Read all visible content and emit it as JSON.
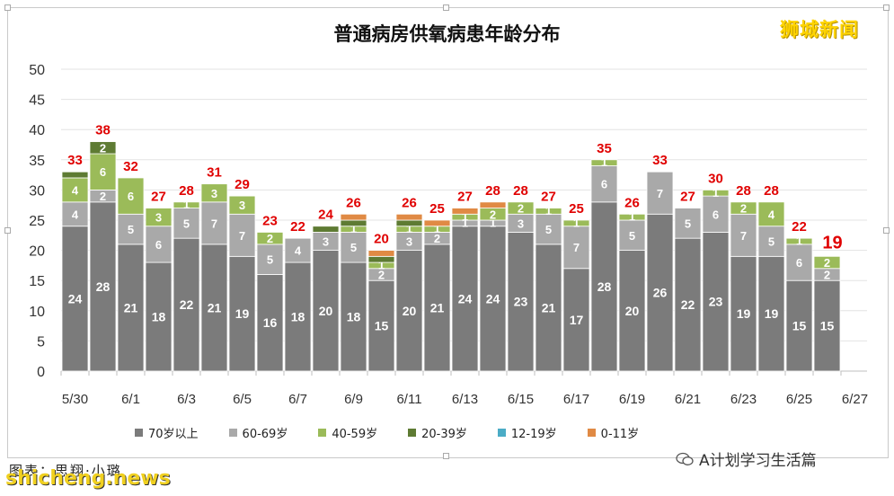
{
  "title": "普通病房供氧病患年龄分布",
  "brand": "狮城新闻",
  "credit": "图表：思翔·小璐",
  "watermark_site": "shicheng.news",
  "watermark_account": "A计划学习生活篇",
  "colors": {
    "70岁以上": "#7b7b7b",
    "60-69岁": "#a9a9a9",
    "40-59岁": "#9bbb59",
    "20-39岁": "#5e7b33",
    "12-19岁": "#4bacc6",
    "0-11岁": "#e08a44",
    "total_label": "#e00000",
    "segment_label": "#ffffff"
  },
  "chart_data": {
    "type": "bar",
    "stacked": true,
    "title": "普通病房供氧病患年龄分布",
    "ylim": [
      0,
      50
    ],
    "yticks": [
      0,
      5,
      10,
      15,
      20,
      25,
      30,
      35,
      40,
      45,
      50
    ],
    "x_tick_labels": [
      "5/30",
      "6/1",
      "6/3",
      "6/5",
      "6/7",
      "6/9",
      "6/11",
      "6/13",
      "6/15",
      "6/17",
      "6/19",
      "6/21",
      "6/23",
      "6/25",
      "6/27"
    ],
    "grid": true,
    "legend_position": "bottom",
    "categories": [
      "5/30",
      "5/31",
      "6/1",
      "6/2",
      "6/3",
      "6/4",
      "6/5",
      "6/6",
      "6/7",
      "6/8",
      "6/9",
      "6/10",
      "6/11",
      "6/12",
      "6/13",
      "6/14",
      "6/15",
      "6/16",
      "6/17",
      "6/18",
      "6/19",
      "6/20",
      "6/21",
      "6/22",
      "6/23",
      "6/24",
      "6/25",
      "6/26"
    ],
    "series": [
      {
        "name": "70岁以上",
        "values": [
          24,
          28,
          21,
          18,
          22,
          21,
          19,
          16,
          18,
          20,
          18,
          15,
          20,
          21,
          24,
          24,
          23,
          21,
          17,
          28,
          20,
          26,
          22,
          23,
          19,
          19,
          15,
          15
        ]
      },
      {
        "name": "60-69岁",
        "values": [
          4,
          2,
          5,
          6,
          5,
          7,
          7,
          5,
          4,
          3,
          5,
          2,
          3,
          2,
          1,
          1,
          3,
          5,
          7,
          6,
          5,
          7,
          5,
          6,
          7,
          5,
          6,
          2
        ]
      },
      {
        "name": "40-59岁",
        "values": [
          4,
          6,
          6,
          3,
          1,
          3,
          3,
          2,
          0,
          0,
          1,
          1,
          1,
          1,
          1,
          2,
          2,
          1,
          1,
          1,
          1,
          0,
          0,
          1,
          2,
          4,
          1,
          2
        ]
      },
      {
        "name": "20-39岁",
        "values": [
          1,
          2,
          0,
          0,
          0,
          0,
          0,
          0,
          0,
          1,
          1,
          1,
          1,
          0,
          0,
          0,
          0,
          0,
          0,
          0,
          0,
          0,
          0,
          0,
          0,
          0,
          0,
          0
        ]
      },
      {
        "name": "12-19岁",
        "values": [
          0,
          0,
          0,
          0,
          0,
          0,
          0,
          0,
          0,
          0,
          0,
          0,
          0,
          0,
          0,
          0,
          0,
          0,
          0,
          0,
          0,
          0,
          0,
          0,
          0,
          0,
          0,
          0
        ]
      },
      {
        "name": "0-11岁",
        "values": [
          0,
          0,
          0,
          0,
          0,
          0,
          0,
          0,
          0,
          0,
          1,
          1,
          1,
          1,
          1,
          1,
          0,
          0,
          0,
          0,
          0,
          0,
          0,
          0,
          0,
          0,
          0,
          0
        ]
      }
    ],
    "totals": [
      33,
      38,
      32,
      27,
      28,
      31,
      29,
      23,
      22,
      24,
      26,
      20,
      26,
      25,
      27,
      28,
      28,
      27,
      25,
      35,
      26,
      33,
      27,
      30,
      28,
      28,
      22,
      19
    ]
  }
}
